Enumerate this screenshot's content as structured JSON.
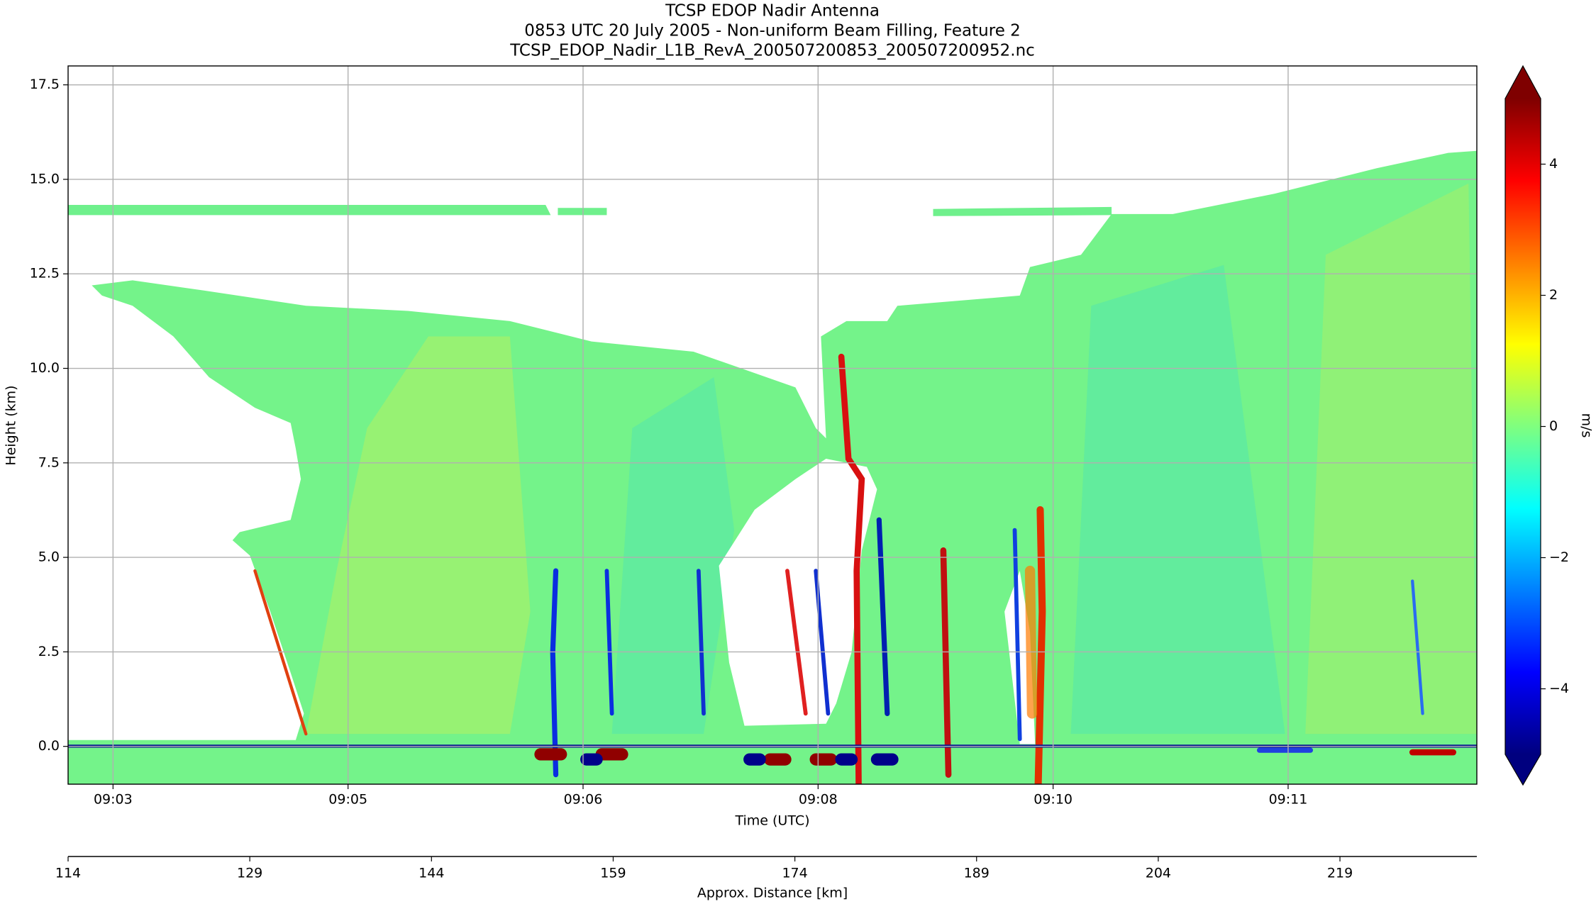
{
  "chart_data": {
    "type": "radar-curtain",
    "title": "TCSP EDOP Nadir Antenna",
    "subtitle": "0853 UTC 20 July 2005 - Non-uniform Beam Filling, Feature 2",
    "file_name": "TCSP_EDOP_Nadir_L1B_RevA_200507200853_200507200952.nc",
    "x_label": "Time (UTC)",
    "xlim": [
      2.975,
      13.165
    ],
    "xticks": [
      {
        "value": 3.3,
        "label": "09:03"
      },
      {
        "value": 5.0,
        "label": "09:05"
      },
      {
        "value": 6.7,
        "label": "09:06"
      },
      {
        "value": 8.4,
        "label": "09:08"
      },
      {
        "value": 10.1,
        "label": "09:10"
      },
      {
        "value": 11.8,
        "label": "09:11"
      }
    ],
    "x2_label": "Approx. Distance [km]",
    "x2lim": [
      114,
      230.3
    ],
    "x2ticks": [
      114,
      129,
      144,
      159,
      174,
      189,
      204,
      219
    ],
    "y_label": "Height (km)",
    "ylim": [
      -1.0,
      18.0
    ],
    "yticks": [
      {
        "value": 0.0,
        "label": "0.0"
      },
      2.5,
      {
        "value": 5.0,
        "label": "5.0"
      },
      7.5,
      {
        "value": 10.0,
        "label": "10.0"
      },
      12.5,
      {
        "value": 15.0,
        "label": "15.0"
      },
      17.5
    ],
    "grid": true,
    "colormap": "jet",
    "colorbar_label": "m/s",
    "clim": [
      -5,
      5
    ],
    "colorbar_ticks": [
      {
        "value": -4,
        "label": "−4"
      },
      {
        "value": -2,
        "label": "−2"
      },
      0,
      2,
      4
    ]
  }
}
